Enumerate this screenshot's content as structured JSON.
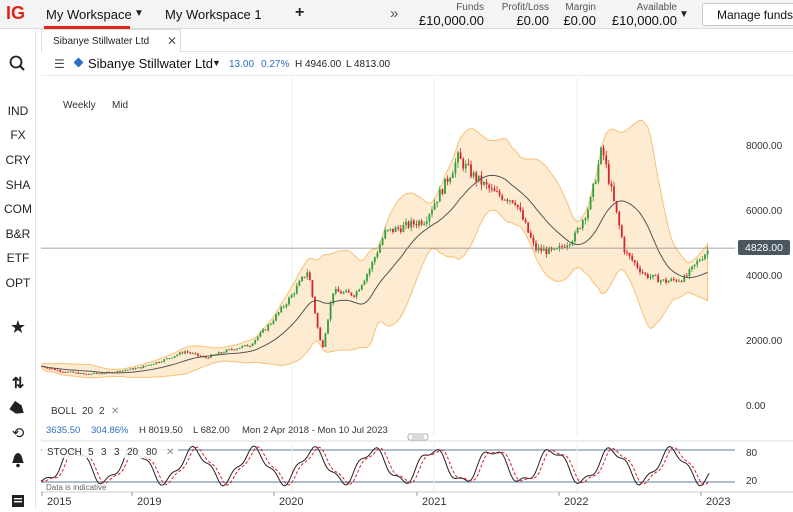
{
  "brand": {
    "logo": "IG"
  },
  "workspaces": [
    {
      "label": "My Workspace"
    },
    {
      "label": "My Workspace 1"
    }
  ],
  "account": {
    "funds": {
      "label": "Funds",
      "value": "£10,000.00"
    },
    "profit_loss": {
      "label": "Profit/Loss",
      "value": "£0.00"
    },
    "margin": {
      "label": "Margin",
      "value": "£0.00"
    },
    "available": {
      "label": "Available",
      "value": "£10,000.00"
    },
    "manage_label": "Manage funds"
  },
  "sidebar": {
    "items": [
      "IND",
      "FX",
      "CRY",
      "SHA",
      "COM",
      "B&R",
      "ETF",
      "OPT"
    ],
    "icons": [
      "search-icon",
      "star-icon",
      "arrows-icon",
      "tag-icon",
      "history-icon",
      "bell-icon",
      "document-icon"
    ]
  },
  "instrument_tab": {
    "label": "Sibanye Stillwater Ltd"
  },
  "instrument": {
    "name": "Sibanye Stillwater Ltd",
    "change": "13.00",
    "change_pct": "0.27%",
    "high": "H 4946.00",
    "low": "L 4813.00"
  },
  "timeframe": {
    "interval": "Weekly",
    "price_type": "Mid"
  },
  "price_axis": {
    "ticks": [
      "8000.00",
      "6000.00",
      "4000.00",
      "2000.00",
      "0.00"
    ],
    "current": "4828.00"
  },
  "boll": {
    "label": "BOLL",
    "params": [
      "20",
      "2"
    ],
    "close_icon": "close-icon"
  },
  "range_stats": {
    "change": "3635.50",
    "change_pct": "304.86%",
    "high": "H 8019.50",
    "low": "L 682.00",
    "dates": "Mon 2 Apr 2018 - Mon 10 Jul 2023"
  },
  "stoch": {
    "label": "STOCH",
    "params": [
      "5",
      "3",
      "3",
      "20",
      "80"
    ],
    "levels": [
      "80",
      "20"
    ],
    "note": "Data is indicative"
  },
  "time_axis": [
    "2015",
    "2019",
    "2020",
    "2021",
    "2022",
    "2023"
  ],
  "colors": {
    "accent": "#e2231a",
    "up": "#2e9e3e",
    "down": "#d9222a",
    "band": "#f9c074",
    "mid": "#555555"
  }
}
